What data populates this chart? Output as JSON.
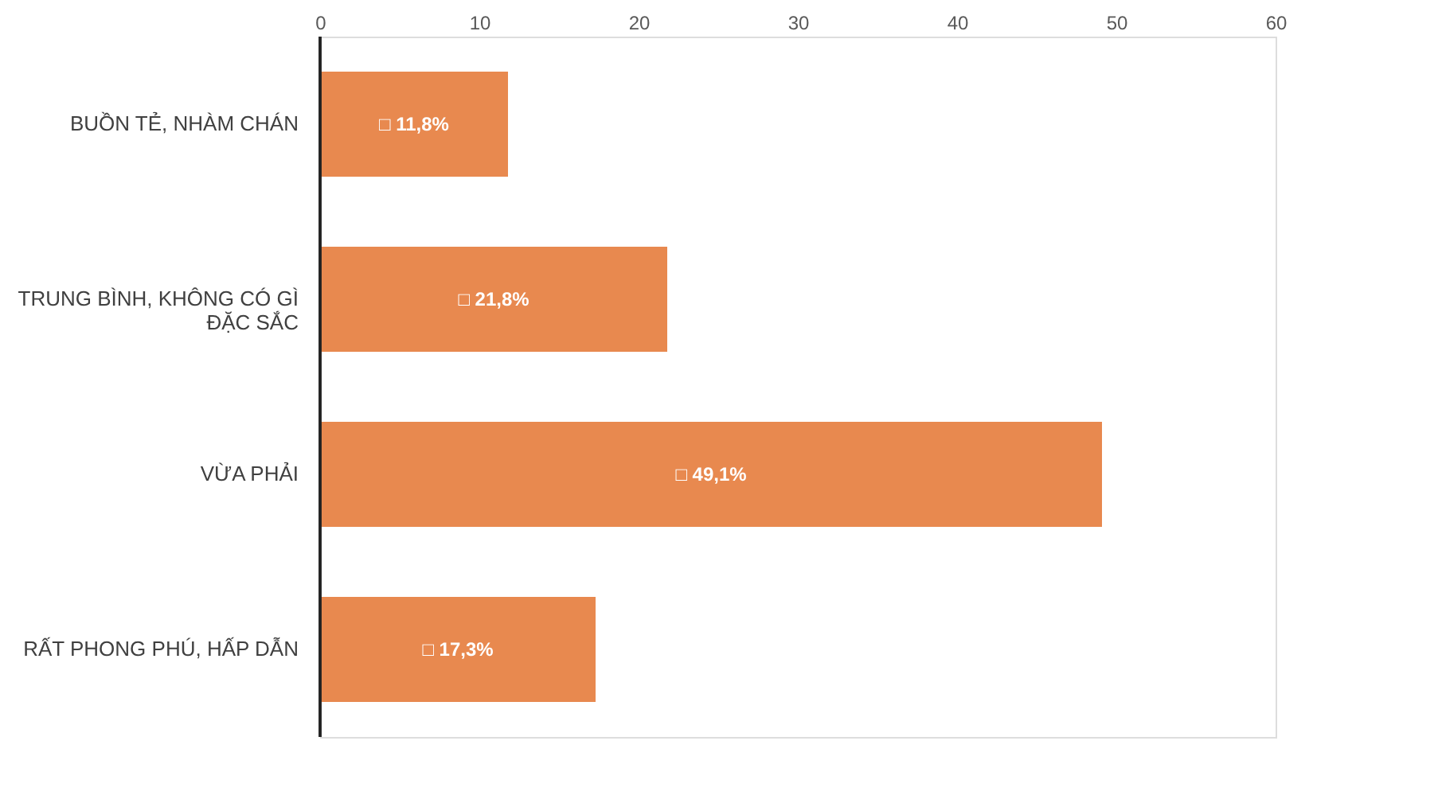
{
  "chart_data": {
    "type": "bar",
    "orientation": "horizontal",
    "categories": [
      "BUỒN TẺ,        NHÀM CHÁN",
      "TRUNG BÌNH, KHÔNG CÓ GÌ ĐẶC SẮC",
      "VỪA PHẢI",
      "RẤT PHONG PHÚ, HẤP DẪN"
    ],
    "values": [
      11.8,
      21.8,
      49.1,
      17.3
    ],
    "value_labels": [
      "□ 11,8%",
      "□ 21,8%",
      "□ 49,1%",
      "□ 17,3%"
    ],
    "color": "#e8894f",
    "xlim": [
      0,
      60
    ],
    "xticks": [
      0,
      10,
      20,
      30,
      40,
      50,
      60
    ],
    "grid": false,
    "legend": false
  }
}
